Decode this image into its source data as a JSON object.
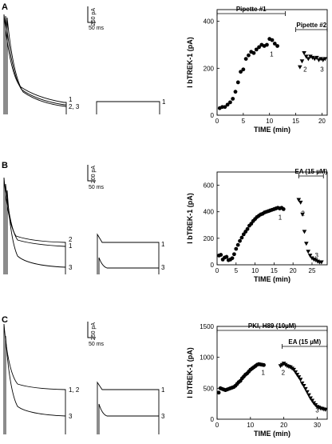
{
  "panels": [
    {
      "label": "A",
      "traces": {
        "scale_current": "250 pA",
        "scale_time": "50 ms",
        "left_labels": [
          "1",
          "2, 3"
        ],
        "right_labels": [
          "1"
        ]
      },
      "annotations": [
        {
          "text": "Pipette #1",
          "x_from": 0,
          "x_to": 13
        },
        {
          "text": "Pipette #2",
          "x_from": 15,
          "x_to": 21
        }
      ],
      "point_labels": [
        {
          "text": "1",
          "x": 10.4,
          "y": 250
        },
        {
          "text": "2",
          "x": 16.8,
          "y": 185
        },
        {
          "text": "3",
          "x": 20.0,
          "y": 185
        }
      ]
    },
    {
      "label": "B",
      "traces": {
        "scale_current": "200 pA",
        "scale_time": "50 ms",
        "left_labels": [
          "2",
          "1",
          "3"
        ],
        "right_labels": [
          "1",
          "3"
        ]
      },
      "annotations": [
        {
          "text": "EA (15 µM)",
          "x_from": 21.5,
          "x_to": 28
        }
      ],
      "point_labels": [
        {
          "text": "1",
          "x": 16.6,
          "y": 340
        },
        {
          "text": "2",
          "x": 22.6,
          "y": 370
        },
        {
          "text": "3",
          "x": 26.2,
          "y": 55
        }
      ]
    },
    {
      "label": "C",
      "traces": {
        "scale_current": "250 pA",
        "scale_time": "50 ms",
        "left_labels": [
          "1, 2",
          "3"
        ],
        "right_labels": [
          "1",
          "3"
        ]
      },
      "annotations": [
        {
          "text": "PKI,  H89 (10µM)",
          "x_from": 0,
          "x_to": 33
        },
        {
          "text": "EA (15 µM)",
          "x_from": 19.5,
          "x_to": 33
        }
      ],
      "point_labels": [
        {
          "text": "1",
          "x": 13.8,
          "y": 720
        },
        {
          "text": "2",
          "x": 19.8,
          "y": 720
        },
        {
          "text": "3",
          "x": 30.0,
          "y": 110
        }
      ]
    }
  ],
  "chart_data": [
    {
      "type": "scatter",
      "title": "",
      "xlabel": "TIME (min)",
      "ylabel": "I bTREK-1 (pA)",
      "xlim": [
        0,
        21
      ],
      "ylim": [
        0,
        450
      ],
      "xticks": [
        0,
        5,
        10,
        15,
        20
      ],
      "yticks": [
        0,
        200,
        400
      ],
      "series": [
        {
          "marker": "circle",
          "color": "#000000",
          "x": [
            0.5,
            1.0,
            1.5,
            2.0,
            2.5,
            3.0,
            3.5,
            4.0,
            4.5,
            5.0,
            5.5,
            6.0,
            6.5,
            7.0,
            7.5,
            8.0,
            8.5,
            9.0,
            9.5,
            10.0,
            10.5,
            11.0,
            11.5
          ],
          "y": [
            30,
            35,
            35,
            45,
            55,
            70,
            100,
            140,
            185,
            195,
            240,
            255,
            270,
            265,
            280,
            290,
            300,
            295,
            300,
            325,
            320,
            305,
            295
          ]
        },
        {
          "marker": "triangle-down",
          "color": "#000000",
          "x": [
            15.8,
            16.2,
            16.6,
            17.0,
            17.4,
            17.8,
            18.2,
            18.6,
            19.0,
            19.4,
            19.8,
            20.2,
            20.6
          ],
          "y": [
            205,
            230,
            265,
            250,
            240,
            250,
            245,
            240,
            245,
            235,
            240,
            235,
            240
          ]
        }
      ]
    },
    {
      "type": "scatter",
      "title": "",
      "xlabel": "TIME (min)",
      "ylabel": "I bTREK-1 (pA)",
      "xlim": [
        0,
        29
      ],
      "ylim": [
        0,
        700
      ],
      "xticks": [
        0,
        5,
        10,
        15,
        20,
        25
      ],
      "yticks": [
        0,
        200,
        400,
        600
      ],
      "series": [
        {
          "marker": "circle",
          "color": "#000000",
          "x": [
            0.5,
            1.0,
            1.5,
            2.0,
            2.5,
            3.0,
            3.5,
            4.0,
            4.5,
            5.0,
            5.5,
            6.0,
            6.5,
            7.0,
            7.5,
            8.0,
            8.5,
            9.0,
            9.5,
            10.0,
            10.5,
            11.0,
            11.5,
            12.0,
            12.5,
            13.0,
            13.5,
            14.0,
            14.5,
            15.0,
            15.5,
            16.0,
            16.5,
            17.0,
            17.5
          ],
          "y": [
            70,
            75,
            40,
            55,
            60,
            35,
            40,
            50,
            80,
            120,
            150,
            180,
            205,
            230,
            250,
            270,
            295,
            310,
            330,
            345,
            360,
            370,
            380,
            385,
            395,
            400,
            405,
            410,
            415,
            420,
            425,
            430,
            425,
            430,
            420
          ]
        },
        {
          "marker": "triangle-down",
          "color": "#000000",
          "x": [
            21.5,
            22.0,
            22.5,
            23.0,
            23.5,
            24.0,
            24.5,
            25.0,
            25.5,
            26.0,
            26.5,
            27.0,
            27.5
          ],
          "y": [
            490,
            470,
            380,
            250,
            160,
            100,
            70,
            50,
            40,
            35,
            25,
            20,
            20
          ]
        }
      ]
    },
    {
      "type": "scatter",
      "title": "",
      "xlabel": "TIME (min)",
      "ylabel": "I bTREK-1 (pA)",
      "xlim": [
        0,
        33
      ],
      "ylim": [
        0,
        1500
      ],
      "xticks": [
        0,
        10,
        20,
        30
      ],
      "yticks": [
        0,
        500,
        1000,
        1500
      ],
      "series": [
        {
          "marker": "circle",
          "color": "#000000",
          "x": [
            0.5,
            1.0,
            1.5,
            2.0,
            2.5,
            3.0,
            3.5,
            4.0,
            4.5,
            5.0,
            5.5,
            6.0,
            6.5,
            7.0,
            7.5,
            8.0,
            8.5,
            9.0,
            9.5,
            10.0,
            10.5,
            11.0,
            11.5,
            12.0,
            12.5,
            13.0,
            13.5,
            14.0
          ],
          "y": [
            430,
            500,
            490,
            480,
            470,
            480,
            490,
            500,
            510,
            520,
            540,
            570,
            600,
            620,
            660,
            690,
            720,
            740,
            770,
            800,
            820,
            840,
            860,
            880,
            890,
            885,
            880,
            875
          ]
        },
        {
          "marker": "triangle-down",
          "color": "#000000",
          "x": [
            19.0,
            19.5,
            20.0,
            20.5,
            21.0,
            21.5,
            22.0,
            22.5,
            23.0,
            23.5,
            24.0,
            24.5,
            25.0,
            25.5,
            26.0,
            26.5,
            27.0,
            27.5,
            28.0,
            28.5,
            29.0,
            29.5,
            30.0,
            30.5,
            31.0,
            31.5,
            32.0,
            32.5
          ],
          "y": [
            860,
            880,
            900,
            880,
            860,
            850,
            840,
            820,
            800,
            760,
            720,
            680,
            640,
            580,
            540,
            490,
            440,
            390,
            340,
            300,
            260,
            230,
            200,
            190,
            175,
            170,
            160,
            155
          ]
        }
      ]
    }
  ]
}
